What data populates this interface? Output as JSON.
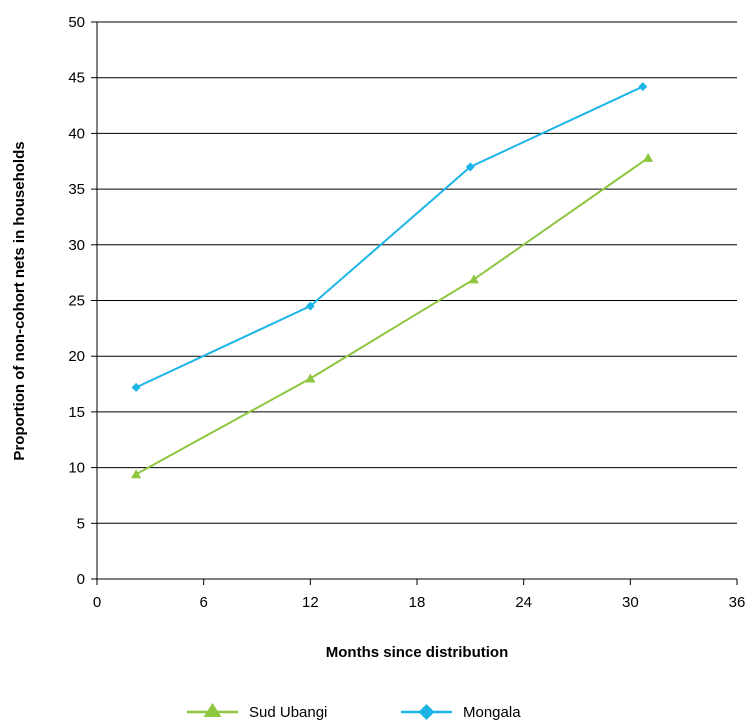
{
  "chart_data": {
    "type": "line",
    "title": "",
    "xlabel": "Months since distribution",
    "ylabel": "Proportion of non-cohort nets in households",
    "xlim": [
      0,
      36
    ],
    "ylim": [
      0,
      50
    ],
    "x_ticks": [
      "0",
      "6",
      "12",
      "18",
      "24",
      "30",
      "36"
    ],
    "y_ticks": [
      "0",
      "5",
      "10",
      "15",
      "20",
      "25",
      "30",
      "35",
      "40",
      "45",
      "50"
    ],
    "grid": "horizontal",
    "legend_position": "bottom",
    "series": [
      {
        "name": "Sud Ubangi",
        "color": "#8DC63F",
        "marker": "triangle",
        "x": [
          2.2,
          12,
          21.2,
          31
        ],
        "y": [
          9.4,
          18,
          26.9,
          37.8
        ]
      },
      {
        "name": "Mongala",
        "color": "#1CB5E8",
        "marker": "diamond",
        "x": [
          2.2,
          12,
          21,
          30.7
        ],
        "y": [
          17.2,
          24.5,
          37,
          44.2
        ]
      }
    ]
  }
}
